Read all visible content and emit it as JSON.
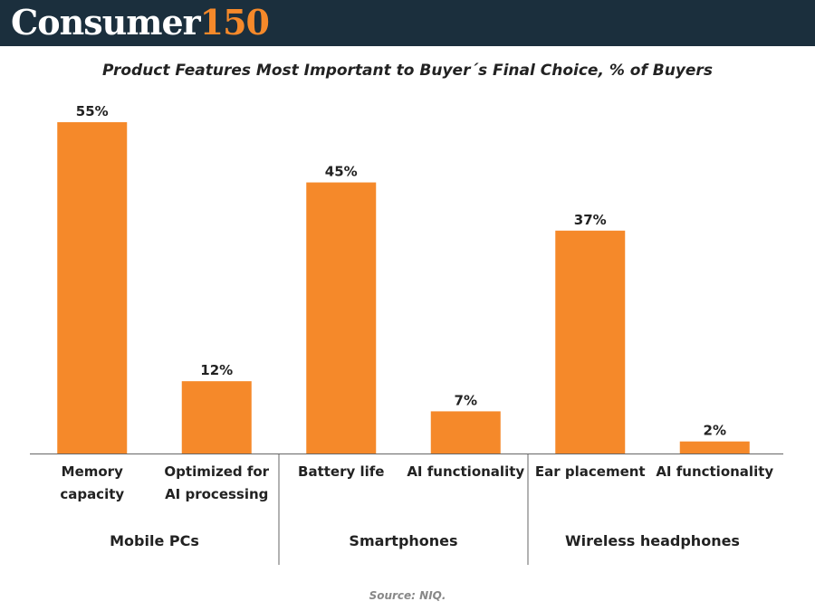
{
  "header": {
    "brand_main": "Consumer",
    "brand_number": "150"
  },
  "colors": {
    "header_bg": "#1b2f3d",
    "accent": "#f5892a"
  },
  "source": "Source: NIQ.",
  "chart_data": {
    "type": "bar",
    "title": "Product Features Most Important to Buyer´s Final Choice, % of Buyers",
    "xlabel": "",
    "ylabel": "",
    "ylim": [
      0,
      55
    ],
    "grid": false,
    "categories": [
      [
        "Memory",
        "capacity"
      ],
      [
        "Optimized for",
        "AI processing"
      ],
      [
        "Battery life"
      ],
      [
        "AI functionality"
      ],
      [
        "Ear placement"
      ],
      [
        "AI functionality"
      ]
    ],
    "values": [
      55,
      12,
      45,
      7,
      37,
      2
    ],
    "data_labels": [
      "55%",
      "12%",
      "45%",
      "7%",
      "37%",
      "2%"
    ],
    "groups": [
      {
        "label": "Mobile PCs",
        "count": 2
      },
      {
        "label": "Smartphones",
        "count": 2
      },
      {
        "label": "Wireless headphones",
        "count": 2
      }
    ]
  }
}
